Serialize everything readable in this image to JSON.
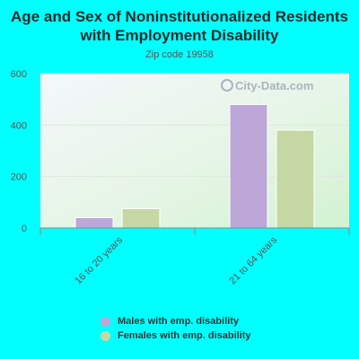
{
  "title": "Age and Sex of Noninstitutionalized Residents with Employment Disability",
  "subtitle": "Zip code 19958",
  "watermark": "City-Data.com",
  "chart_data": {
    "type": "bar",
    "title": "Age and Sex of Noninstitutionalized Residents with Employment Disability",
    "subtitle": "Zip code 19958",
    "categories": [
      "16 to 20 years",
      "21 to 64 years"
    ],
    "series": [
      {
        "name": "Males with emp. disability",
        "values": [
          40,
          480
        ],
        "color": "#bda7d9"
      },
      {
        "name": "Females with emp. disability",
        "values": [
          75,
          380
        ],
        "color": "#c5d8a4"
      }
    ],
    "yticks": [
      0,
      200,
      400,
      600
    ],
    "ylim": [
      0,
      600
    ],
    "xlabel": "",
    "ylabel": "",
    "grid": true,
    "legend_position": "bottom"
  }
}
